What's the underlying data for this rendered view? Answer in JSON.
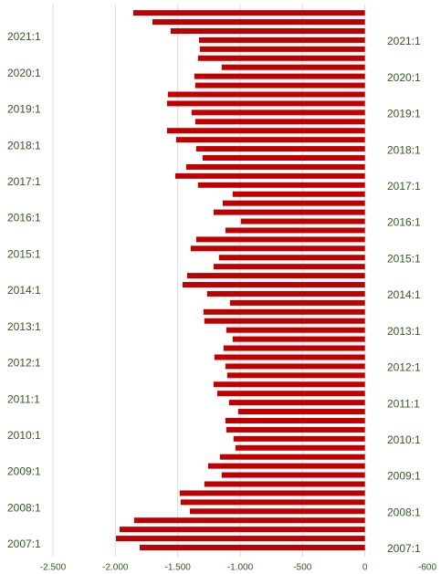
{
  "chart_data": {
    "type": "barh",
    "categories": [
      "2007:1",
      null,
      null,
      null,
      "2008:1",
      null,
      null,
      null,
      "2009:1",
      null,
      null,
      null,
      "2010:1",
      null,
      null,
      null,
      "2011:1",
      null,
      null,
      null,
      "2012:1",
      null,
      null,
      null,
      "2013:1",
      null,
      null,
      null,
      "2014:1",
      null,
      null,
      null,
      "2015:1",
      null,
      null,
      null,
      "2016:1",
      null,
      null,
      null,
      "2017:1",
      null,
      null,
      null,
      "2018:1",
      null,
      null,
      null,
      "2019:1",
      null,
      null,
      null,
      "2020:1",
      null,
      null,
      null,
      "2021:1",
      null,
      null,
      null
    ],
    "values": [
      -1805,
      -1995,
      -1966,
      -1850,
      -1403,
      -1477,
      -1484,
      -1287,
      -1148,
      -1257,
      -1162,
      -1038,
      -1053,
      -1111,
      -1118,
      -1016,
      -1089,
      -1184,
      -1213,
      -1104,
      -1118,
      -1206,
      -1133,
      -1060,
      -1111,
      -1287,
      -1294,
      -1082,
      -1265,
      -1462,
      -1425,
      -1213,
      -1170,
      -1396,
      -1352,
      -1118,
      -994,
      -1213,
      -1140,
      -1060,
      -1338,
      -1520,
      -1433,
      -1301,
      -1352,
      -1513,
      -1586,
      -1360,
      -1389,
      -1586,
      -1579,
      -1360,
      -1367,
      -1148,
      -1338,
      -1323,
      -1330,
      -1557,
      -1703,
      -1857
    ],
    "color": "#c00000",
    "xlim": [
      -2500,
      500
    ],
    "xticks": [
      {
        "value": -2500,
        "label": "-2.500"
      },
      {
        "value": -2000,
        "label": "-2.000"
      },
      {
        "value": -1500,
        "label": "-1.500"
      },
      {
        "value": -1000,
        "label": "-1.000"
      },
      -500,
      0
    ],
    "grid": true,
    "annotation": "-600"
  }
}
